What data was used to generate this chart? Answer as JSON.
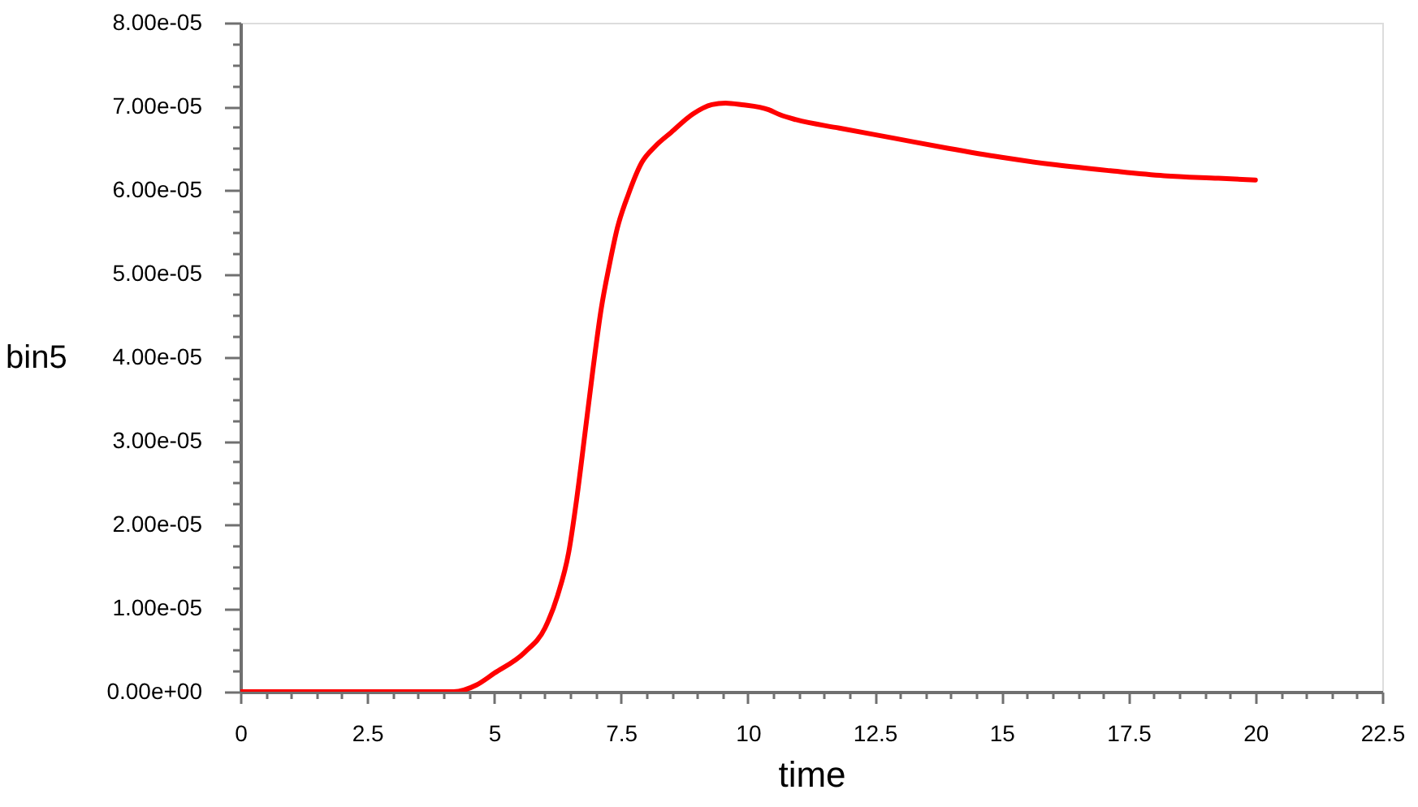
{
  "chart_data": {
    "type": "line",
    "xlabel": "time",
    "ylabel": "bin5",
    "x": [
      0,
      2,
      3.5,
      4.2,
      4.65,
      5.0,
      5.6,
      6.0,
      6.25,
      6.47,
      6.63,
      6.79,
      6.95,
      7.11,
      7.27,
      7.43,
      7.64,
      7.91,
      8.17,
      8.49,
      8.92,
      9.29,
      9.56,
      9.88,
      10.41,
      10.63,
      10.95,
      11.8,
      12.87,
      13.93,
      15.0,
      16.07,
      17.14,
      18.2,
      19.27,
      20.0
    ],
    "series": [
      {
        "color": "#ff0000",
        "values": [
          0,
          0,
          0,
          0,
          8e-07,
          2.2e-06,
          4.7e-06,
          7.6e-06,
          1.15e-05,
          1.67e-05,
          2.32e-05,
          3.09e-05,
          3.87e-05,
          4.58e-05,
          5.1e-05,
          5.55e-05,
          5.94e-05,
          6.33e-05,
          6.52e-05,
          6.69e-05,
          6.91e-05,
          7.02e-05,
          7.04e-05,
          7.02e-05,
          6.96e-05,
          6.9e-05,
          6.84e-05,
          6.74e-05,
          6.62e-05,
          6.5e-05,
          6.39e-05,
          6.3e-05,
          6.23e-05,
          6.17e-05,
          6.14e-05,
          6.12e-05
        ]
      }
    ],
    "xlim": [
      0,
      22.5
    ],
    "ylim": [
      0,
      8e-05
    ],
    "xticks": [
      0,
      {
        "value": 0.5,
        "label": null
      },
      {
        "value": 1,
        "label": null
      },
      {
        "value": 1.5,
        "label": null
      },
      {
        "value": 2,
        "label": null
      },
      2.5,
      {
        "value": 3,
        "label": null
      },
      {
        "value": 3.5,
        "label": null
      },
      {
        "value": 4,
        "label": null
      },
      {
        "value": 4.5,
        "label": null
      },
      5,
      {
        "value": 5.5,
        "label": null
      },
      {
        "value": 6,
        "label": null
      },
      {
        "value": 6.5,
        "label": null
      },
      {
        "value": 7,
        "label": null
      },
      7.5,
      {
        "value": 8,
        "label": null
      },
      {
        "value": 8.5,
        "label": null
      },
      {
        "value": 9,
        "label": null
      },
      {
        "value": 9.5,
        "label": null
      },
      10,
      {
        "value": 10.5,
        "label": null
      },
      {
        "value": 11,
        "label": null
      },
      {
        "value": 11.5,
        "label": null
      },
      {
        "value": 12,
        "label": null
      },
      12.5,
      {
        "value": 13,
        "label": null
      },
      {
        "value": 13.5,
        "label": null
      },
      {
        "value": 14,
        "label": null
      },
      {
        "value": 14.5,
        "label": null
      },
      15,
      {
        "value": 15.5,
        "label": null
      },
      {
        "value": 16,
        "label": null
      },
      {
        "value": 16.5,
        "label": null
      },
      {
        "value": 17,
        "label": null
      },
      17.5,
      {
        "value": 18,
        "label": null
      },
      {
        "value": 18.5,
        "label": null
      },
      {
        "value": 19,
        "label": null
      },
      {
        "value": 19.5,
        "label": null
      },
      20,
      {
        "value": 20.5,
        "label": null
      },
      {
        "value": 21,
        "label": null
      },
      {
        "value": 21.5,
        "label": null
      },
      {
        "value": 22,
        "label": null
      },
      22.5
    ],
    "yticks": [
      {
        "value": 0,
        "label": "0.00e+00"
      },
      {
        "value": 2.5e-06,
        "label": null
      },
      {
        "value": 5e-06,
        "label": null
      },
      {
        "value": 7.5e-06,
        "label": null
      },
      {
        "value": 1e-05,
        "label": "1.00e-05"
      },
      {
        "value": 1.25e-05,
        "label": null
      },
      {
        "value": 1.5e-05,
        "label": null
      },
      {
        "value": 1.75e-05,
        "label": null
      },
      {
        "value": 2e-05,
        "label": "2.00e-05"
      },
      {
        "value": 2.25e-05,
        "label": null
      },
      {
        "value": 2.5e-05,
        "label": null
      },
      {
        "value": 2.75e-05,
        "label": null
      },
      {
        "value": 3e-05,
        "label": "3.00e-05"
      },
      {
        "value": 3.25e-05,
        "label": null
      },
      {
        "value": 3.5e-05,
        "label": null
      },
      {
        "value": 3.75e-05,
        "label": null
      },
      {
        "value": 4e-05,
        "label": "4.00e-05"
      },
      {
        "value": 4.25e-05,
        "label": null
      },
      {
        "value": 4.5e-05,
        "label": null
      },
      {
        "value": 4.75e-05,
        "label": null
      },
      {
        "value": 5e-05,
        "label": "5.00e-05"
      },
      {
        "value": 5.25e-05,
        "label": null
      },
      {
        "value": 5.5e-05,
        "label": null
      },
      {
        "value": 5.75e-05,
        "label": null
      },
      {
        "value": 6e-05,
        "label": "6.00e-05"
      },
      {
        "value": 6.25e-05,
        "label": null
      },
      {
        "value": 6.5e-05,
        "label": null
      },
      {
        "value": 6.75e-05,
        "label": null
      },
      {
        "value": 7e-05,
        "label": "7.00e-05"
      },
      {
        "value": 7.25e-05,
        "label": null
      },
      {
        "value": 7.5e-05,
        "label": null
      },
      {
        "value": 7.75e-05,
        "label": null
      },
      {
        "value": 8e-05,
        "label": "8.00e-05"
      }
    ]
  }
}
